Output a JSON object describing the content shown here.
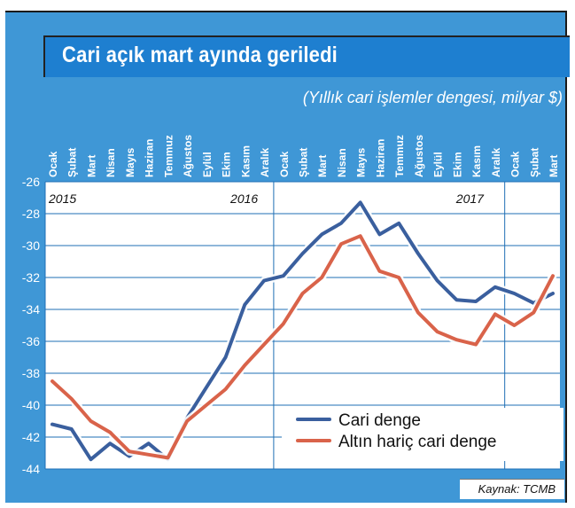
{
  "title": "Cari açık mart ayında geriledi",
  "subtitle": "(Yıllık cari işlemler dengesi, milyar $)",
  "source": "Kaynak: TCMB",
  "colors": {
    "background": "#3f97d6",
    "title_bar": "#1e7fd0",
    "cari_line": "#3a5f9e",
    "altin_line": "#d9634a"
  },
  "chart_data": {
    "type": "line",
    "categories": [
      "Ocak",
      "Şubat",
      "Mart",
      "Nisan",
      "Mayıs",
      "Haziran",
      "Temmuz",
      "Ağustos",
      "Eylül",
      "Ekim",
      "Kasım",
      "Aralık",
      "Ocak",
      "Şubat",
      "Mart",
      "Nisan",
      "Mayıs",
      "Haziran",
      "Temmuz",
      "Ağustos",
      "Eylül",
      "Ekim",
      "Kasım",
      "Aralık",
      "Ocak",
      "Şubat",
      "Mart"
    ],
    "year_labels": [
      {
        "label": "2015",
        "index": 0
      },
      {
        "label": "2016",
        "index": 11
      },
      {
        "label": "2017",
        "index": 23
      }
    ],
    "series": [
      {
        "name": "Cari denge",
        "values": [
          -41.2,
          -41.5,
          -43.4,
          -42.4,
          -43.2,
          -42.4,
          -43.4,
          -40.8,
          -38.9,
          -37.0,
          -33.7,
          -32.2,
          -31.9,
          -30.5,
          -29.3,
          -28.6,
          -27.3,
          -29.3,
          -28.6,
          -30.5,
          -32.2,
          -33.4,
          -33.5,
          -32.6,
          -33.0,
          -33.6,
          -33.0
        ]
      },
      {
        "name": "Altın hariç cari denge",
        "values": [
          -38.5,
          -39.6,
          -41.0,
          -41.7,
          -42.9,
          -43.1,
          -43.3,
          -41.0,
          -40.0,
          -39.0,
          -37.5,
          -36.2,
          -34.9,
          -33.0,
          -32.0,
          -29.9,
          -29.4,
          -31.6,
          -32.0,
          -34.2,
          -35.4,
          -35.9,
          -36.2,
          -34.3,
          -35.0,
          -34.2,
          -31.9
        ]
      }
    ],
    "ylim": [
      -44,
      -26
    ],
    "yticks": [
      -26,
      -28,
      -30,
      -32,
      -34,
      -36,
      -38,
      -40,
      -42,
      -44
    ],
    "grid": true,
    "legend_placement": "bottom-right"
  }
}
